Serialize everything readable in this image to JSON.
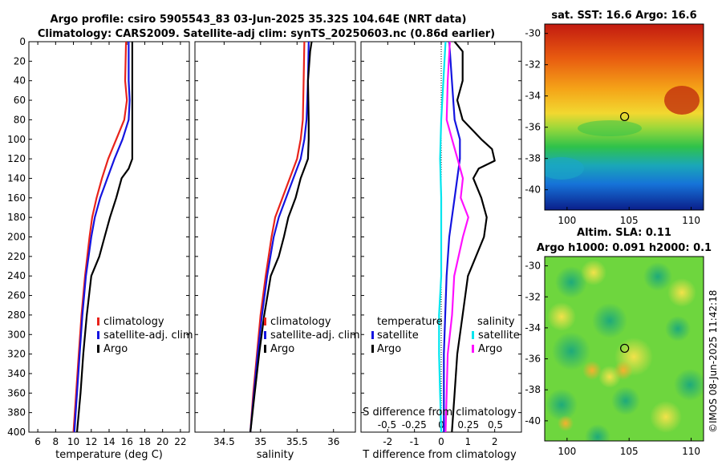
{
  "title_line1": "Argo profile: csiro 5905543_83 03-Jun-2025 35.32S 104.64E (NRT data)",
  "title_line2": "Climatology: CARS2009. Satellite-adj clim: synTS_20250603.nc (0.86d earlier)",
  "credit": "©IMOS 08-Jun-2025 11:42:18",
  "colors": {
    "climatology": "#e8231b",
    "satellite": "#1414e0",
    "argo": "#000000",
    "sal_satellite": "#00e5ee",
    "sal_argo": "#ff10ff"
  },
  "chart_data": [
    {
      "id": "temperature_profile",
      "type": "line",
      "xlabel": "temperature (deg C)",
      "ylabel": "depth",
      "xlim": [
        5,
        23
      ],
      "ylim": [
        400,
        0
      ],
      "xticks": [
        "6",
        "8",
        "10",
        "12",
        "14",
        "16",
        "18",
        "20",
        "22"
      ],
      "xtick_values": [
        6,
        8,
        10,
        12,
        14,
        16,
        18,
        20,
        22
      ],
      "yticks": [
        "0",
        "20",
        "40",
        "60",
        "80",
        "100",
        "120",
        "140",
        "160",
        "180",
        "200",
        "220",
        "240",
        "260",
        "280",
        "300",
        "320",
        "340",
        "360",
        "380",
        "400"
      ],
      "legend": [
        "climatology",
        "satellite-adj. clim",
        "Argo"
      ],
      "series": [
        {
          "name": "climatology",
          "depth": [
            0,
            40,
            60,
            80,
            100,
            120,
            140,
            160,
            180,
            200,
            240,
            280,
            320,
            360,
            400
          ],
          "values": [
            15.9,
            15.8,
            16.0,
            15.7,
            14.8,
            13.9,
            13.2,
            12.6,
            12.1,
            11.8,
            11.3,
            10.9,
            10.6,
            10.3,
            10.0
          ]
        },
        {
          "name": "satellite-adj. clim",
          "depth": [
            0,
            40,
            60,
            80,
            100,
            120,
            140,
            160,
            180,
            200,
            240,
            280,
            320,
            360,
            400
          ],
          "values": [
            16.2,
            16.2,
            16.3,
            16.2,
            15.5,
            14.6,
            13.8,
            13.0,
            12.4,
            12.0,
            11.4,
            11.0,
            10.7,
            10.4,
            10.1
          ]
        },
        {
          "name": "Argo",
          "depth": [
            0,
            40,
            80,
            100,
            120,
            130,
            140,
            160,
            180,
            200,
            220,
            240,
            280,
            320,
            360,
            400
          ],
          "values": [
            16.6,
            16.6,
            16.6,
            16.6,
            16.6,
            16.2,
            15.4,
            14.8,
            14.1,
            13.5,
            12.9,
            12.0,
            11.5,
            11.1,
            10.8,
            10.4
          ]
        }
      ]
    },
    {
      "id": "salinity_profile",
      "type": "line",
      "xlabel": "salinity",
      "ylabel": "depth",
      "xlim": [
        34.1,
        36.3
      ],
      "ylim": [
        400,
        0
      ],
      "xticks": [
        "34.5",
        "35",
        "35.5",
        "36"
      ],
      "xtick_values": [
        34.5,
        35,
        35.5,
        36
      ],
      "legend": [
        "climatology",
        "satellite-adj. clim",
        "Argo"
      ],
      "series": [
        {
          "name": "climatology",
          "depth": [
            0,
            40,
            80,
            100,
            120,
            140,
            160,
            180,
            200,
            240,
            280,
            320,
            360,
            400
          ],
          "values": [
            35.6,
            35.59,
            35.58,
            35.55,
            35.5,
            35.4,
            35.3,
            35.2,
            35.15,
            35.07,
            35.0,
            34.95,
            34.9,
            34.86
          ]
        },
        {
          "name": "satellite-adj. clim",
          "depth": [
            0,
            40,
            80,
            100,
            120,
            140,
            160,
            180,
            200,
            240,
            280,
            320,
            360,
            400
          ],
          "values": [
            35.66,
            35.65,
            35.63,
            35.6,
            35.55,
            35.45,
            35.35,
            35.25,
            35.18,
            35.09,
            35.02,
            34.96,
            34.91,
            34.86
          ]
        },
        {
          "name": "Argo",
          "depth": [
            0,
            10,
            40,
            80,
            100,
            120,
            130,
            140,
            160,
            180,
            200,
            220,
            240,
            280,
            320,
            360,
            400
          ],
          "values": [
            35.7,
            35.68,
            35.65,
            35.66,
            35.66,
            35.65,
            35.6,
            35.55,
            35.48,
            35.38,
            35.32,
            35.25,
            35.14,
            35.05,
            34.98,
            34.92,
            34.86
          ]
        }
      ]
    },
    {
      "id": "difference_profile",
      "type": "line",
      "xlabel": "T difference from climatology",
      "xlabel_top": "S difference from climatology",
      "xlim": [
        -3,
        3
      ],
      "ylim": [
        400,
        0
      ],
      "xticks": [
        "-2",
        "-1",
        "0",
        "1",
        "2"
      ],
      "xtick_values": [
        -2,
        -1,
        0,
        1,
        2
      ],
      "sticks": [
        "-0.5",
        "-0.25",
        "0",
        "0.25",
        "0.5"
      ],
      "legend_temperature_title": "temperature",
      "legend_salinity_title": "salinity",
      "legend_temperature": [
        "satellite",
        "Argo"
      ],
      "legend_salinity": [
        "satellite",
        "Argo"
      ],
      "series": [
        {
          "name": "T satellite",
          "depth": [
            0,
            40,
            80,
            100,
            120,
            160,
            200,
            240,
            280,
            320,
            360,
            400
          ],
          "values": [
            0.3,
            0.4,
            0.5,
            0.7,
            0.7,
            0.5,
            0.3,
            0.2,
            0.15,
            0.1,
            0.1,
            0.1
          ]
        },
        {
          "name": "T Argo",
          "depth": [
            0,
            10,
            40,
            60,
            80,
            100,
            110,
            122,
            130,
            140,
            160,
            180,
            200,
            240,
            280,
            320,
            360,
            400
          ],
          "values": [
            0.5,
            0.8,
            0.8,
            0.6,
            0.8,
            1.5,
            1.9,
            2.0,
            1.4,
            1.2,
            1.5,
            1.7,
            1.6,
            1.0,
            0.8,
            0.6,
            0.5,
            0.4
          ]
        },
        {
          "name": "S satellite",
          "depth": [
            0,
            40,
            80,
            120,
            160,
            200,
            240,
            280,
            320,
            360,
            400
          ],
          "values": [
            0.04,
            0.02,
            0.0,
            -0.01,
            0.0,
            0.0,
            0.0,
            -0.02,
            -0.02,
            -0.01,
            0.0
          ]
        },
        {
          "name": "S Argo",
          "depth": [
            0,
            40,
            80,
            100,
            120,
            140,
            160,
            180,
            200,
            240,
            280,
            320,
            360,
            400
          ],
          "values": [
            0.08,
            0.06,
            0.05,
            0.1,
            0.15,
            0.2,
            0.18,
            0.25,
            0.2,
            0.12,
            0.1,
            0.06,
            0.05,
            0.04
          ]
        }
      ]
    },
    {
      "id": "sst_map",
      "type": "heatmap",
      "title": "sat. SST: 16.6 Argo: 16.6",
      "xticks": [
        "100",
        "105",
        "110"
      ],
      "xtick_values": [
        100,
        105,
        110
      ],
      "yticks": [
        "-30",
        "-32",
        "-34",
        "-36",
        "-38",
        "-40"
      ],
      "ytick_values": [
        -30,
        -32,
        -34,
        -36,
        -38,
        -40
      ],
      "xlim": [
        98.2,
        111.0
      ],
      "ylim": [
        -41.3,
        -29.4
      ],
      "marker": [
        104.64,
        -35.32
      ]
    },
    {
      "id": "sla_map",
      "type": "heatmap",
      "title_line1": "Altim. SLA: 0.11",
      "title_line2": "Argo h1000: 0.091 h2000: 0.1",
      "xticks": [
        "100",
        "105",
        "110"
      ],
      "xtick_values": [
        100,
        105,
        110
      ],
      "yticks": [
        "-30",
        "-32",
        "-34",
        "-36",
        "-38",
        "-40"
      ],
      "ytick_values": [
        -30,
        -32,
        -34,
        -36,
        -38,
        -40
      ],
      "xlim": [
        98.2,
        111.0
      ],
      "ylim": [
        -41.3,
        -29.4
      ],
      "marker": [
        104.64,
        -35.32
      ]
    }
  ]
}
